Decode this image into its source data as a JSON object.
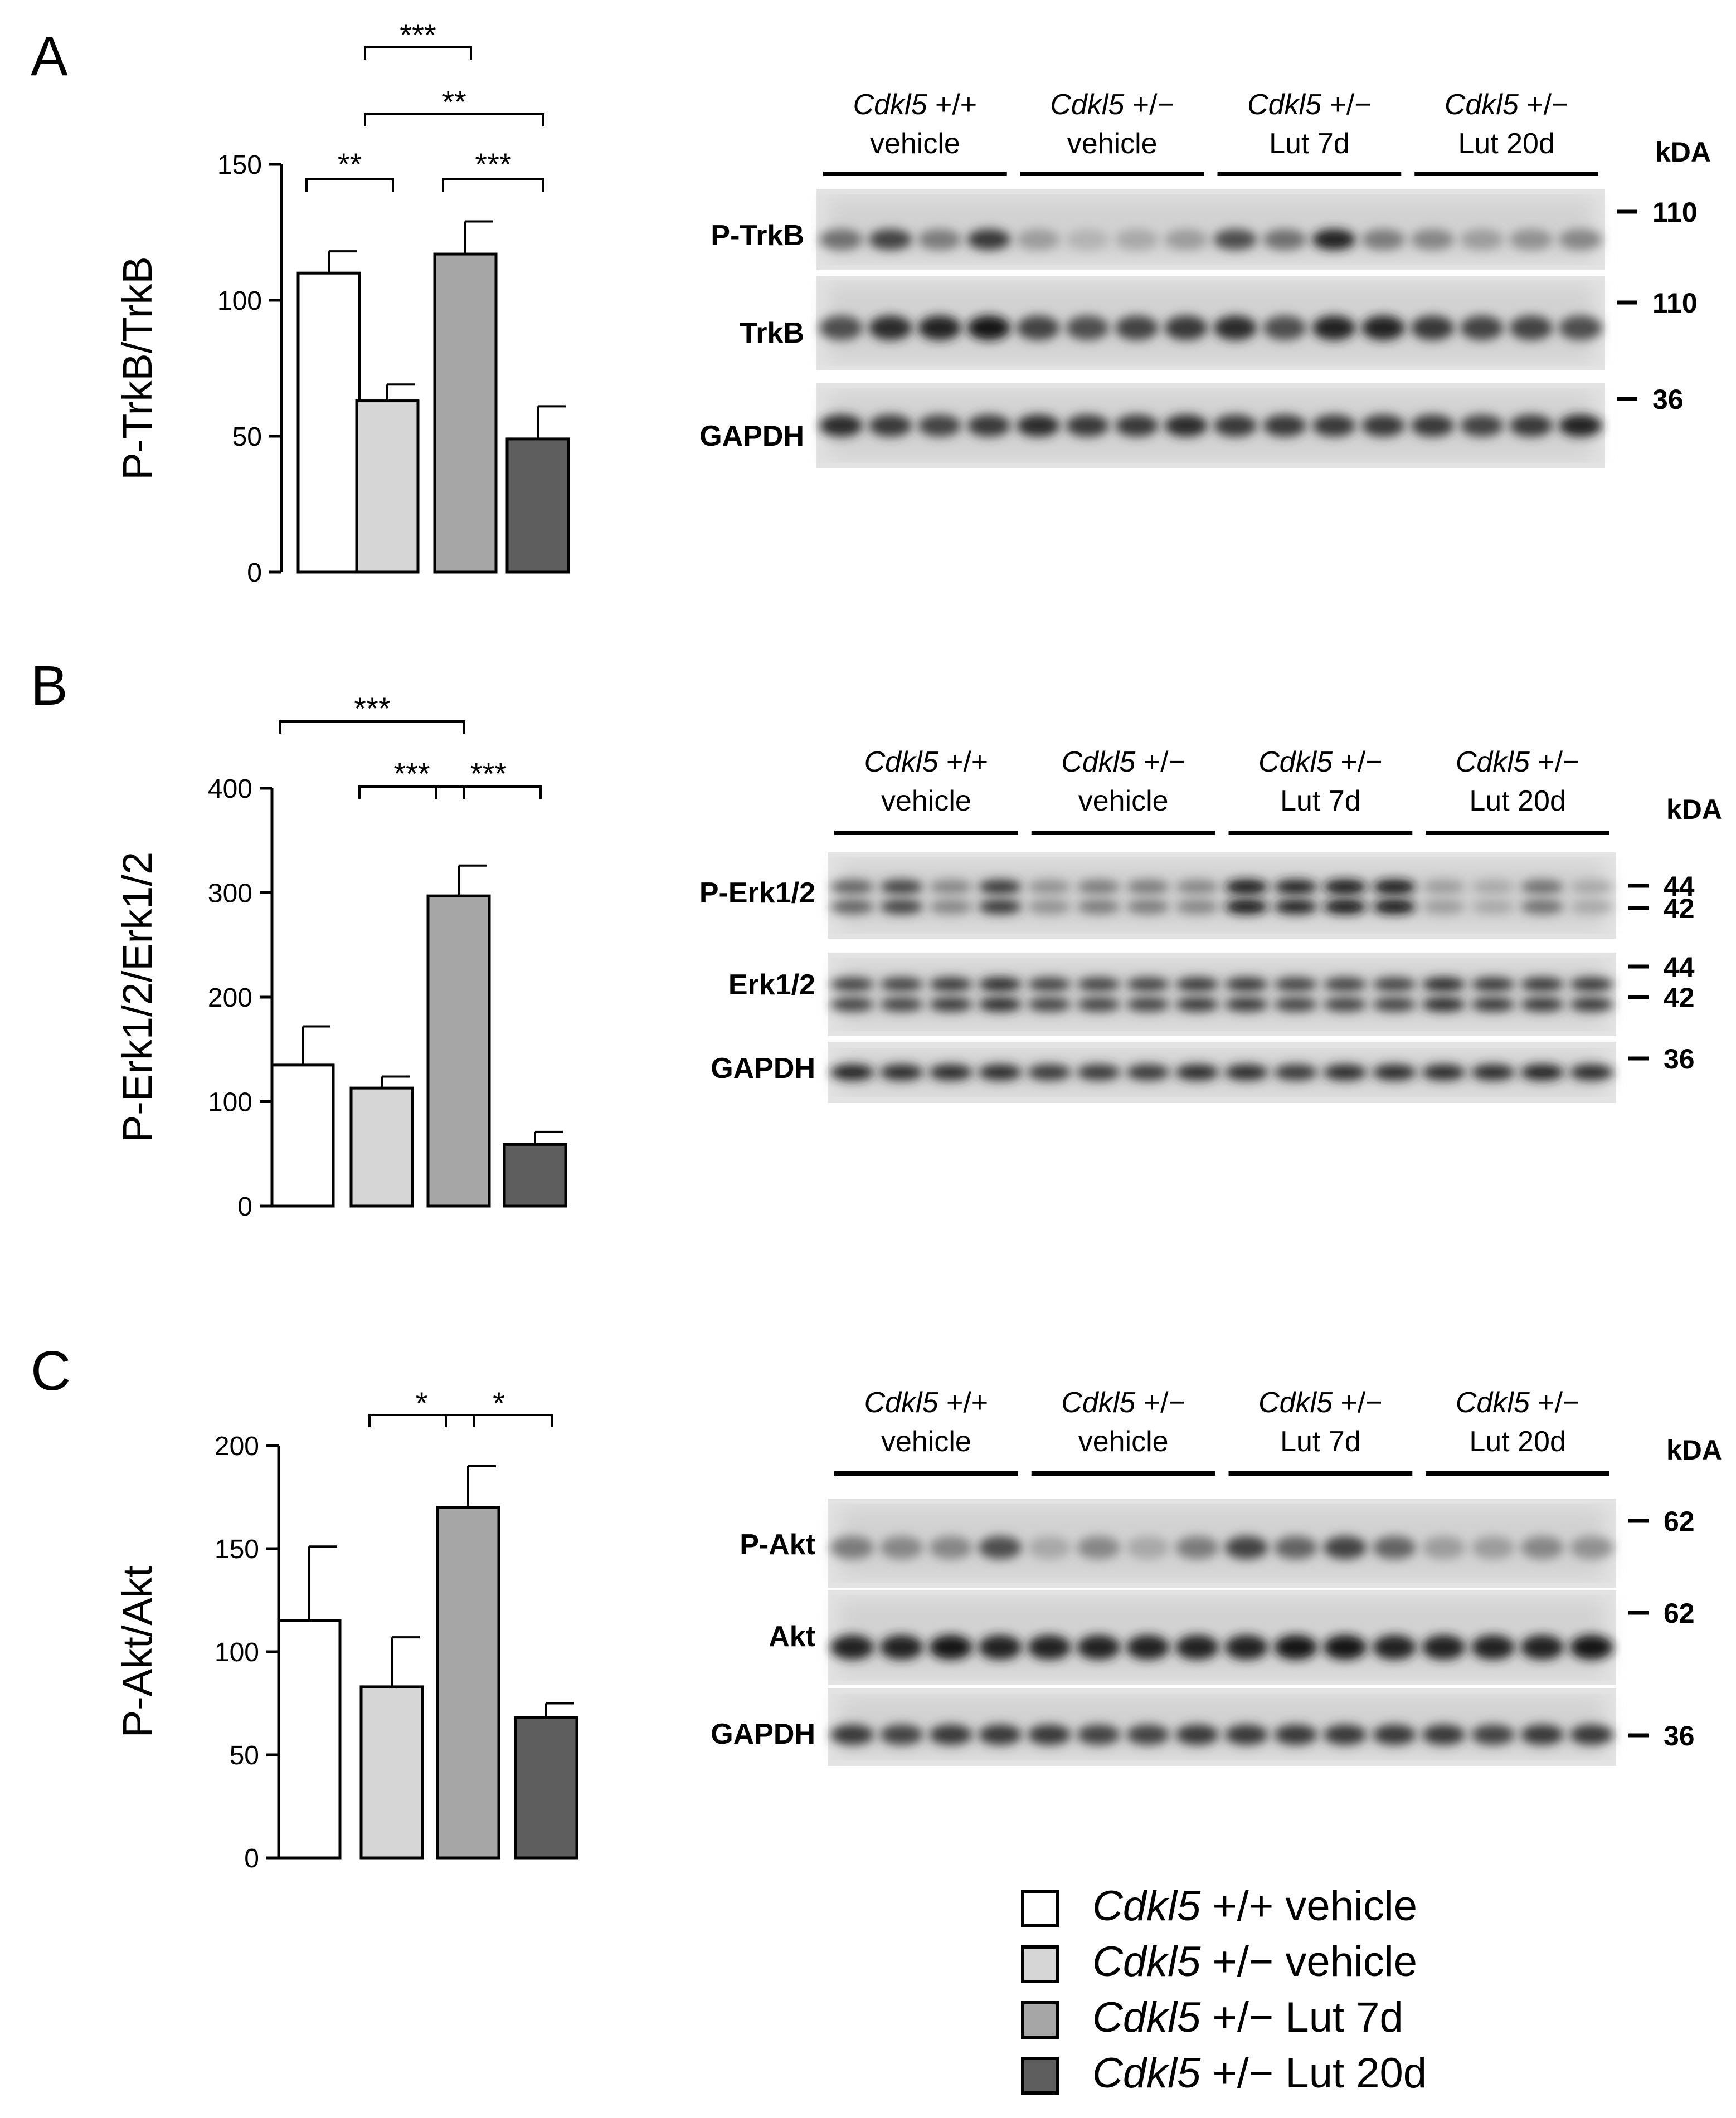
{
  "panels": [
    {
      "letter": "A",
      "chart_data": {
        "type": "bar",
        "ylabel": "P-TrkB/TrkB",
        "ylim": [
          0,
          150
        ],
        "yticks": [
          0,
          50,
          100,
          150
        ],
        "categories": [
          "Cdkl5 +/+ vehicle",
          "Cdkl5 +/− vehicle",
          "Cdkl5 +/− Lut 7d",
          "Cdkl5 +/− Lut 20d"
        ],
        "values": [
          110,
          63,
          117,
          49
        ],
        "errors": [
          8,
          6,
          12,
          12
        ],
        "colors": [
          "#ffffff",
          "#d6d6d6",
          "#a6a6a6",
          "#5e5e5e"
        ],
        "significance": [
          {
            "from": 0,
            "to": 1,
            "label": "**"
          },
          {
            "from": 1,
            "to": 2,
            "label": "***"
          },
          {
            "from": 1,
            "to": 3,
            "label": "**"
          },
          {
            "from": 2,
            "to": 3,
            "label": "***"
          }
        ]
      },
      "blot": {
        "groups": [
          {
            "gene": "Cdkl5",
            "genotype": " +/+",
            "treatment": "vehicle"
          },
          {
            "gene": "Cdkl5",
            "genotype": " +/−",
            "treatment": "vehicle"
          },
          {
            "gene": "Cdkl5",
            "genotype": " +/−",
            "treatment": "Lut 7d"
          },
          {
            "gene": "Cdkl5",
            "genotype": " +/−",
            "treatment": "Lut 20d"
          }
        ],
        "kda_label": "kDA",
        "rows": [
          {
            "label": "P-TrkB",
            "markers": [
              "110"
            ],
            "intensity": [
              0.55,
              0.75,
              0.5,
              0.8,
              0.35,
              0.25,
              0.3,
              0.35,
              0.7,
              0.55,
              0.9,
              0.5,
              0.45,
              0.35,
              0.4,
              0.45
            ]
          },
          {
            "label": "TrkB",
            "markers": [
              "110"
            ],
            "intensity": [
              0.7,
              0.85,
              0.9,
              0.95,
              0.75,
              0.7,
              0.75,
              0.8,
              0.85,
              0.7,
              0.9,
              0.9,
              0.8,
              0.75,
              0.75,
              0.7
            ]
          },
          {
            "label": "GAPDH",
            "markers": [
              "36"
            ],
            "intensity": [
              0.85,
              0.8,
              0.75,
              0.8,
              0.85,
              0.8,
              0.8,
              0.85,
              0.8,
              0.8,
              0.8,
              0.8,
              0.8,
              0.75,
              0.8,
              0.9
            ]
          }
        ]
      }
    },
    {
      "letter": "B",
      "chart_data": {
        "type": "bar",
        "ylabel": "P-Erk1/2/Erk1/2",
        "ylim": [
          0,
          400
        ],
        "yticks": [
          0,
          100,
          200,
          300,
          400
        ],
        "categories": [
          "Cdkl5 +/+ vehicle",
          "Cdkl5 +/− vehicle",
          "Cdkl5 +/− Lut 7d",
          "Cdkl5 +/− Lut 20d"
        ],
        "values": [
          135,
          113,
          297,
          59
        ],
        "errors": [
          37,
          11,
          29,
          12
        ],
        "colors": [
          "#ffffff",
          "#d6d6d6",
          "#a6a6a6",
          "#5e5e5e"
        ],
        "significance": [
          {
            "from": 0,
            "to": 2,
            "label": "***"
          },
          {
            "from": 1,
            "to": 2,
            "label": "***"
          },
          {
            "from": 2,
            "to": 3,
            "label": "***"
          }
        ]
      },
      "blot": {
        "groups": [
          {
            "gene": "Cdkl5",
            "genotype": " +/+",
            "treatment": "vehicle"
          },
          {
            "gene": "Cdkl5",
            "genotype": " +/−",
            "treatment": "vehicle"
          },
          {
            "gene": "Cdkl5",
            "genotype": " +/−",
            "treatment": "Lut 7d"
          },
          {
            "gene": "Cdkl5",
            "genotype": " +/−",
            "treatment": "Lut 20d"
          }
        ],
        "kda_label": "kDA",
        "rows": [
          {
            "label": "P-Erk1/2",
            "markers": [
              "44",
              "42"
            ],
            "intensity": [
              0.6,
              0.75,
              0.45,
              0.8,
              0.4,
              0.5,
              0.5,
              0.45,
              0.95,
              0.9,
              0.95,
              0.95,
              0.35,
              0.3,
              0.55,
              0.3
            ]
          },
          {
            "label": "Erk1/2",
            "markers": [
              "44",
              "42"
            ],
            "intensity": [
              0.75,
              0.75,
              0.8,
              0.85,
              0.75,
              0.75,
              0.75,
              0.8,
              0.8,
              0.75,
              0.75,
              0.75,
              0.85,
              0.8,
              0.8,
              0.8
            ]
          },
          {
            "label": "GAPDH",
            "markers": [
              "36"
            ],
            "intensity": [
              0.9,
              0.85,
              0.85,
              0.85,
              0.8,
              0.8,
              0.8,
              0.85,
              0.85,
              0.8,
              0.85,
              0.85,
              0.85,
              0.85,
              0.9,
              0.85
            ]
          }
        ]
      }
    },
    {
      "letter": "C",
      "chart_data": {
        "type": "bar",
        "ylabel": "P-Akt/Akt",
        "ylim": [
          0,
          200
        ],
        "yticks": [
          0,
          50,
          100,
          150,
          200
        ],
        "categories": [
          "Cdkl5 +/+ vehicle",
          "Cdkl5 +/− vehicle",
          "Cdkl5 +/− Lut 7d",
          "Cdkl5 +/− Lut 20d"
        ],
        "values": [
          115,
          83,
          170,
          68
        ],
        "errors": [
          36,
          24,
          20,
          7
        ],
        "colors": [
          "#ffffff",
          "#d6d6d6",
          "#a6a6a6",
          "#5e5e5e"
        ],
        "significance": [
          {
            "from": 1,
            "to": 2,
            "label": "*"
          },
          {
            "from": 2,
            "to": 3,
            "label": "*"
          }
        ]
      },
      "blot": {
        "groups": [
          {
            "gene": "Cdkl5",
            "genotype": " +/+",
            "treatment": "vehicle"
          },
          {
            "gene": "Cdkl5",
            "genotype": " +/−",
            "treatment": "vehicle"
          },
          {
            "gene": "Cdkl5",
            "genotype": " +/−",
            "treatment": "Lut 7d"
          },
          {
            "gene": "Cdkl5",
            "genotype": " +/−",
            "treatment": "Lut 20d"
          }
        ],
        "kda_label": "kDA",
        "rows": [
          {
            "label": "P-Akt",
            "markers": [
              "62"
            ],
            "intensity": [
              0.5,
              0.45,
              0.45,
              0.7,
              0.3,
              0.45,
              0.3,
              0.5,
              0.75,
              0.6,
              0.75,
              0.6,
              0.35,
              0.35,
              0.45,
              0.4
            ]
          },
          {
            "label": "Akt",
            "markers": [
              "62"
            ],
            "intensity": [
              0.9,
              0.9,
              0.95,
              0.9,
              0.9,
              0.9,
              0.9,
              0.9,
              0.9,
              0.95,
              0.95,
              0.9,
              0.9,
              0.9,
              0.9,
              0.95
            ]
          },
          {
            "label": "GAPDH",
            "markers": [
              "36"
            ],
            "intensity": [
              0.8,
              0.75,
              0.8,
              0.8,
              0.8,
              0.75,
              0.75,
              0.8,
              0.8,
              0.8,
              0.8,
              0.8,
              0.8,
              0.75,
              0.8,
              0.8
            ]
          }
        ]
      }
    }
  ],
  "legend": {
    "entries": [
      {
        "gene": "Cdkl5",
        "rest": " +/+ vehicle",
        "color": "#ffffff"
      },
      {
        "gene": "Cdkl5",
        "rest": " +/− vehicle",
        "color": "#d6d6d6"
      },
      {
        "gene": "Cdkl5",
        "rest": " +/− Lut 7d",
        "color": "#a6a6a6"
      },
      {
        "gene": "Cdkl5",
        "rest": " +/− Lut 20d",
        "color": "#5e5e5e"
      }
    ]
  }
}
